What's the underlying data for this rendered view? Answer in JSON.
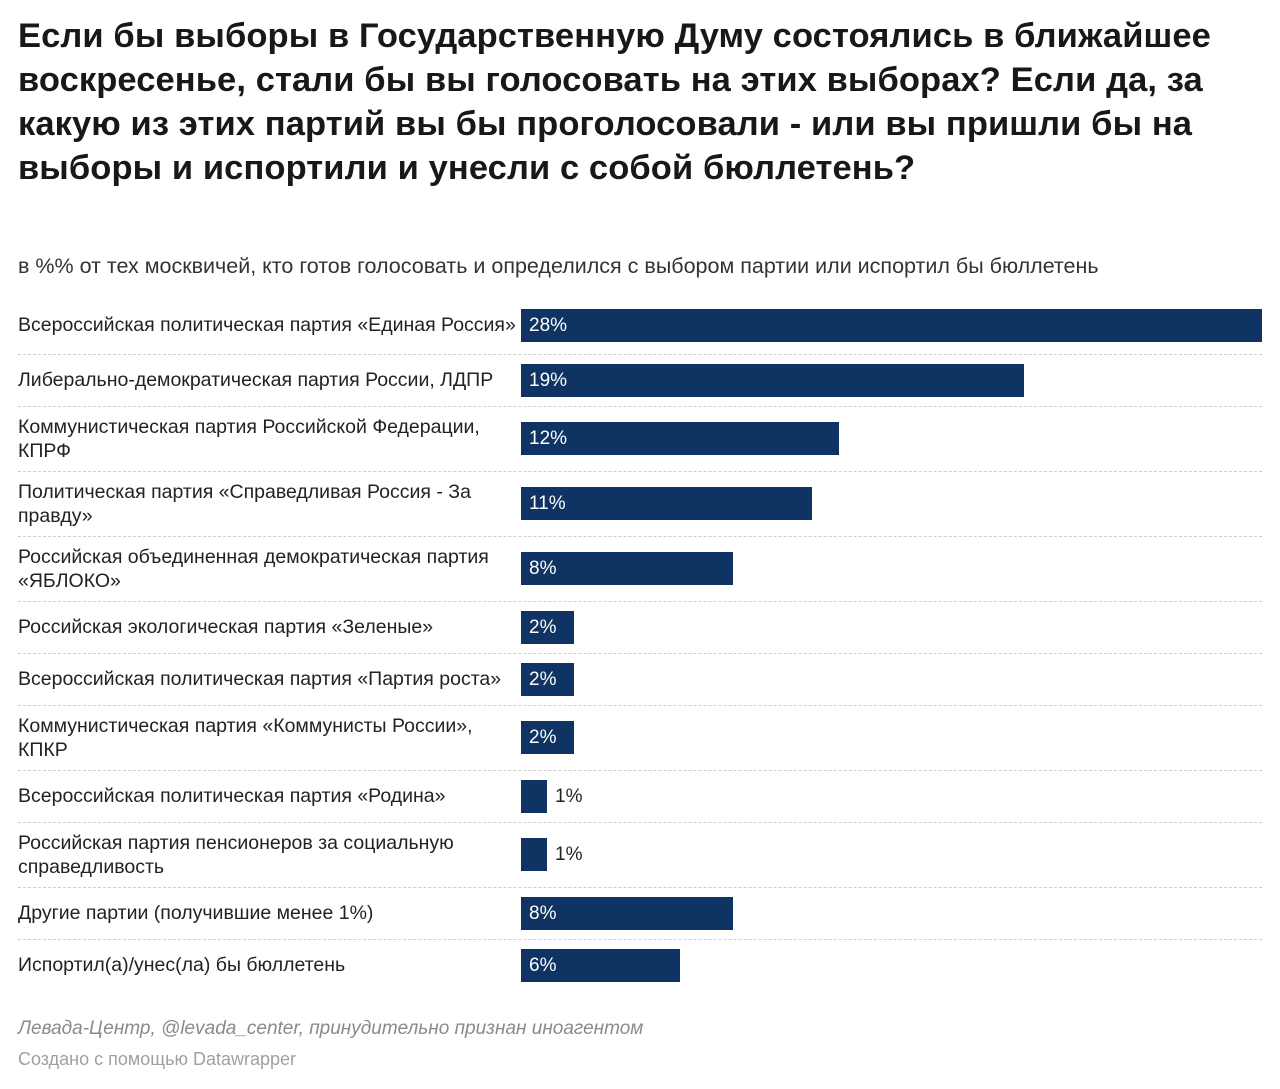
{
  "chart_data": {
    "type": "bar",
    "orientation": "horizontal",
    "title": "Если бы выборы в Государственную Думу состоялись в ближайшее воскресенье, стали бы вы голосовать на этих выборах? Если да, за какую из этих партий вы бы проголосовали - или вы пришли бы на выборы и испортили и унесли с собой бюллетень?",
    "subtitle": "в %% от тех москвичей, кто готов голосовать и определился с выбором партии или испортил бы бюллетень",
    "categories": [
      "Всероссийская политическая партия «Единая Россия»",
      "Либерально-демократическая партия России, ЛДПР",
      "Коммунистическая партия Российской Федерации, КПРФ",
      "Политическая партия «Справедливая Россия - За правду»",
      "Российская объединенная демократическая партия «ЯБЛОКО»",
      "Российская экологическая партия «Зеленые»",
      "Всероссийская политическая партия «Партия роста»",
      "Коммунистическая партия «Коммунисты России», КПКР",
      "Всероссийская политическая партия «Родина»",
      "Российская партия пенсионеров за социальную справедливость",
      "Другие партии (получившие менее 1%)",
      "Испортил(а)/унес(ла) бы бюллетень"
    ],
    "values": [
      28,
      19,
      12,
      11,
      8,
      2,
      2,
      2,
      1,
      1,
      8,
      6
    ],
    "value_labels": [
      "28%",
      "19%",
      "12%",
      "11%",
      "8%",
      "2%",
      "2%",
      "2%",
      "1%",
      "1%",
      "8%",
      "6%"
    ],
    "xlim": [
      0,
      28
    ],
    "bar_color": "#0f3362",
    "gridlines": false
  },
  "footer": {
    "source": "Левада-Центр, @levada_center, принудительно признан иноагентом",
    "credit": "Создано с помощью Datawrapper"
  }
}
